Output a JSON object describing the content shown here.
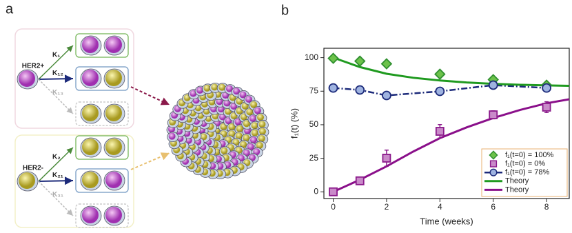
{
  "panel_labels": [
    "a",
    "b"
  ],
  "diagram": {
    "groups": [
      {
        "label": "HER2+",
        "rates": [
          "K₁",
          "K₁₂",
          "K₁₃"
        ]
      },
      {
        "label": "HER2-",
        "rates": [
          "K₂",
          "K₂₁",
          "K₃₁"
        ]
      }
    ]
  },
  "chart_data": {
    "type": "scatter-line",
    "xlabel": "Time (weeks)",
    "ylabel": "f₁(t) (%)",
    "xlim": [
      -0.35,
      8.85
    ],
    "xticks": [
      0,
      2,
      4,
      6,
      8
    ],
    "ylim": [
      -5,
      107
    ],
    "yticks": [
      0,
      25,
      50,
      75,
      100
    ],
    "legend": "lower right",
    "series": [
      {
        "name": "f₁(t=0) = 100%",
        "kind": "marker",
        "marker": "diamond",
        "color": "#2f8f2f",
        "fill": "#6cc24a",
        "x": [
          0,
          1,
          2,
          4,
          6,
          8
        ],
        "values": [
          99.5,
          97.4,
          95.4,
          87.7,
          83.6,
          79.5
        ]
      },
      {
        "name": "f₁(t=0) = 0%",
        "kind": "marker",
        "marker": "square",
        "color": "#8b1a8b",
        "fill": "#c98ac9",
        "x": [
          0,
          1,
          2,
          4,
          6,
          8
        ],
        "values": [
          0,
          8.2,
          25.1,
          45.1,
          57.4,
          63.1
        ],
        "errors": [
          1,
          1,
          6,
          5,
          3,
          4
        ]
      },
      {
        "name": "f₁(t=0) = 78%",
        "kind": "marker-line",
        "marker": "circle",
        "color": "#1c2a7a",
        "fill": "#9fb3e0",
        "x": [
          0,
          1,
          2,
          4,
          6,
          8
        ],
        "values": [
          77.4,
          75.9,
          71.8,
          74.9,
          79.5,
          77.4
        ]
      },
      {
        "name": "Theory",
        "kind": "line",
        "color": "#1f9a1f",
        "x": [
          0,
          1,
          2,
          3,
          4,
          5,
          6,
          7,
          8,
          8.85
        ],
        "values": [
          100,
          93,
          88,
          85,
          83,
          81.5,
          80.5,
          79.8,
          79.3,
          79
        ]
      },
      {
        "name": "Theory",
        "kind": "line",
        "color": "#8a0f8a",
        "x": [
          0,
          1,
          2,
          3,
          4,
          5,
          6,
          7,
          8,
          8.85
        ],
        "values": [
          0,
          9,
          19,
          30,
          40,
          48,
          55,
          61,
          66,
          69
        ]
      }
    ]
  }
}
